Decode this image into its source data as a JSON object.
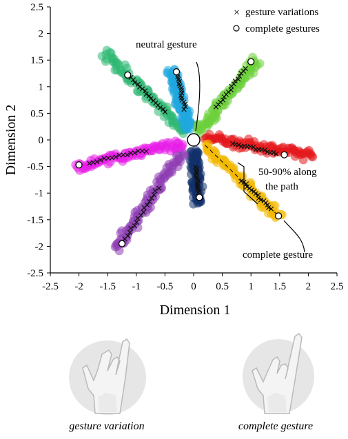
{
  "chart_data": {
    "type": "scatter",
    "title": "",
    "xlabel": "Dimension 1",
    "ylabel": "Dimension 2",
    "xlim": [
      -2.5,
      2.5
    ],
    "ylim": [
      -2.5,
      2.5
    ],
    "xticks": [
      "-2.5",
      "-2",
      "-1.5",
      "-1",
      "-0.5",
      "0",
      "0.5",
      "1",
      "1.5",
      "2",
      "2.5"
    ],
    "yticks": [
      "2.5",
      "2",
      "1.5",
      "1",
      "0.5",
      "0",
      "-0.5",
      "-1",
      "-1.5",
      "-2",
      "-2.5"
    ],
    "grid": false,
    "legend": {
      "position": "top-right",
      "entries": [
        {
          "marker": "cross",
          "label": "gesture variations"
        },
        {
          "marker": "open-circle",
          "label": "complete gestures"
        }
      ]
    },
    "neutral_gesture": {
      "x": 0.0,
      "y": 0.0
    },
    "series": [
      {
        "color": "#2eb872",
        "start": [
          -0.15,
          0.15
        ],
        "complete": [
          -1.15,
          1.22
        ],
        "tail": [
          -1.55,
          1.65
        ],
        "cross_range": [
          0.35,
          0.95
        ]
      },
      {
        "color": "#1fa7de",
        "start": [
          -0.07,
          0.2
        ],
        "complete": [
          -0.3,
          1.28
        ],
        "tail": [
          -0.4,
          1.32
        ],
        "cross_range": [
          0.35,
          0.95
        ]
      },
      {
        "color": "#6ccf3a",
        "start": [
          0.08,
          0.15
        ],
        "complete": [
          1.0,
          1.47
        ],
        "tail": [
          1.1,
          1.5
        ],
        "cross_range": [
          0.35,
          0.9
        ]
      },
      {
        "color": "#e3171c",
        "start": [
          0.2,
          0.05
        ],
        "complete": [
          1.58,
          -0.28
        ],
        "tail": [
          2.08,
          -0.3
        ],
        "cross_range": [
          0.35,
          0.9
        ]
      },
      {
        "color": "#f2b800",
        "start": [
          0.2,
          -0.1
        ],
        "complete": [
          1.48,
          -1.43
        ],
        "tail": [
          1.5,
          -1.45
        ],
        "cross_range": [
          0.5,
          0.9
        ]
      },
      {
        "color": "#13326b",
        "start": [
          0.0,
          -0.2
        ],
        "complete": [
          0.1,
          -1.08
        ],
        "tail": [
          0.08,
          -1.2
        ],
        "cross_range": [
          0.35,
          0.9
        ]
      },
      {
        "color": "#8e3db3",
        "start": [
          -0.2,
          -0.2
        ],
        "complete": [
          -1.25,
          -1.95
        ],
        "tail": [
          -1.35,
          -2.05
        ],
        "cross_range": [
          0.4,
          0.95
        ]
      },
      {
        "color": "#e81ee8",
        "start": [
          -0.2,
          -0.05
        ],
        "complete": [
          -2.0,
          -0.47
        ],
        "tail": [
          -2.05,
          -0.5
        ],
        "cross_range": [
          0.35,
          0.9
        ]
      }
    ],
    "annotations": [
      {
        "text": "neutral gesture"
      },
      {
        "text": "50-90% along"
      },
      {
        "text": "the path"
      },
      {
        "text": "complete gesture"
      }
    ]
  },
  "captions": {
    "left": "gesture variation",
    "right": "complete gesture"
  }
}
